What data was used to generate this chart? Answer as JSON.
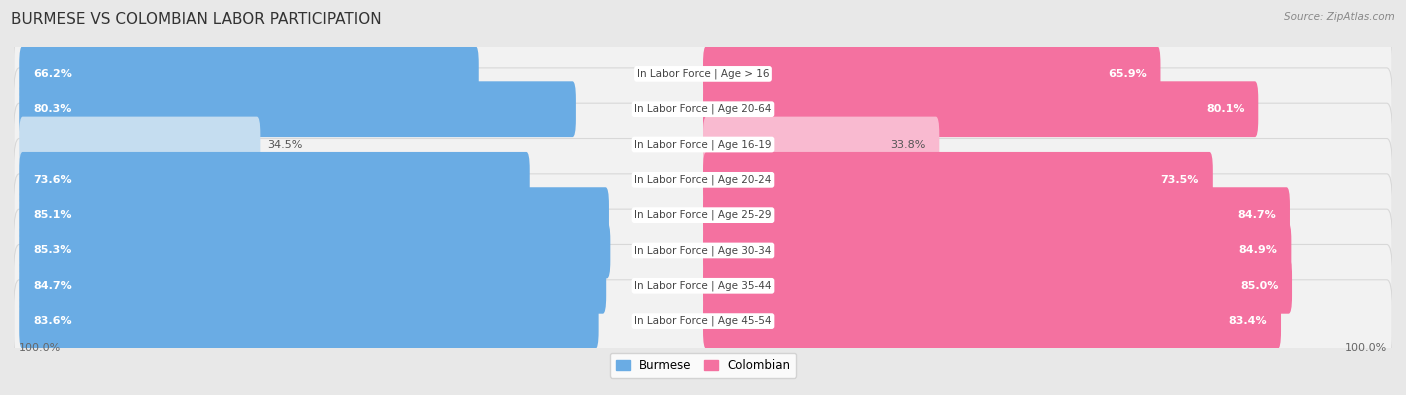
{
  "title": "BURMESE VS COLOMBIAN LABOR PARTICIPATION",
  "source": "Source: ZipAtlas.com",
  "categories": [
    "In Labor Force | Age > 16",
    "In Labor Force | Age 20-64",
    "In Labor Force | Age 16-19",
    "In Labor Force | Age 20-24",
    "In Labor Force | Age 25-29",
    "In Labor Force | Age 30-34",
    "In Labor Force | Age 35-44",
    "In Labor Force | Age 45-54"
  ],
  "burmese_values": [
    66.2,
    80.3,
    34.5,
    73.6,
    85.1,
    85.3,
    84.7,
    83.6
  ],
  "colombian_values": [
    65.9,
    80.1,
    33.8,
    73.5,
    84.7,
    84.9,
    85.0,
    83.4
  ],
  "burmese_color": "#6aace4",
  "burmese_color_light": "#c5ddf0",
  "colombian_color": "#f471a0",
  "colombian_color_light": "#f9bad0",
  "background_color": "#e8e8e8",
  "row_bg_color": "#f2f2f2",
  "row_outline_color": "#d8d8d8",
  "max_value": 100.0,
  "bar_height": 0.62,
  "title_fontsize": 11,
  "label_fontsize": 7.5,
  "value_fontsize": 8,
  "legend_fontsize": 8.5,
  "source_fontsize": 7.5
}
